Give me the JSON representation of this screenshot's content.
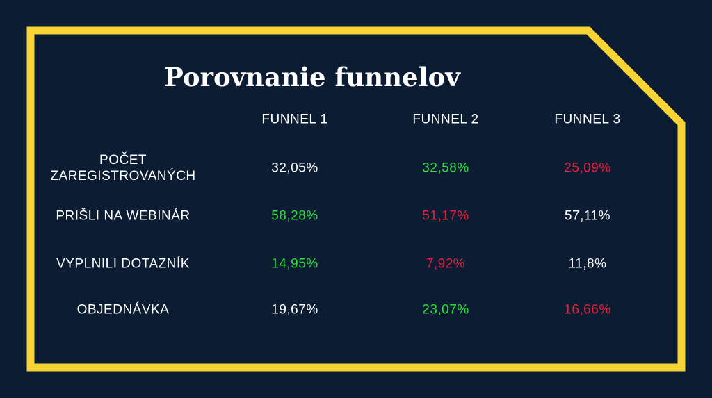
{
  "title": "Porovnanie funnelov",
  "columns": [
    "FUNNEL 1",
    "FUNNEL 2",
    "FUNNEL 3"
  ],
  "rows": [
    {
      "label": "POČET ZAREGISTROVANÝCH",
      "values": [
        {
          "text": "32,05%",
          "tone": "white"
        },
        {
          "text": "32,58%",
          "tone": "green"
        },
        {
          "text": "25,09%",
          "tone": "red"
        }
      ]
    },
    {
      "label": "PRIŠLI NA WEBINÁR",
      "values": [
        {
          "text": "58,28%",
          "tone": "green"
        },
        {
          "text": "51,17%",
          "tone": "red"
        },
        {
          "text": "57,11%",
          "tone": "white"
        }
      ]
    },
    {
      "label": "VYPLNILI DOTAZNÍK",
      "values": [
        {
          "text": "14,95%",
          "tone": "green"
        },
        {
          "text": "7,92%",
          "tone": "red"
        },
        {
          "text": "11,8%",
          "tone": "white"
        }
      ]
    },
    {
      "label": "OBJEDNÁVKA",
      "values": [
        {
          "text": "19,67%",
          "tone": "white"
        },
        {
          "text": "23,07%",
          "tone": "green"
        },
        {
          "text": "16,66%",
          "tone": "red"
        }
      ]
    }
  ],
  "colors": {
    "background": "#0b1c33",
    "frame": "#f7d433",
    "text": "#ffffff",
    "positive": "#2ee03a",
    "negative": "#e3213a"
  }
}
